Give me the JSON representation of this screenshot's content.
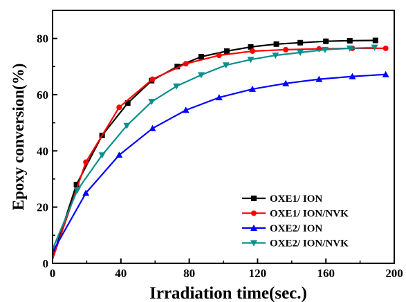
{
  "chart_data": {
    "type": "line",
    "xlabel": "Irradiation time(sec.)",
    "ylabel": "Epoxy conversion(%)",
    "xlim": [
      0,
      200
    ],
    "ylim": [
      0,
      90
    ],
    "xticks": [
      "0",
      "40",
      "80",
      "120",
      "160",
      "200"
    ],
    "yticks": [
      "0",
      "20",
      "40",
      "60",
      "80"
    ],
    "grid": false,
    "legend_position": "bottom-right",
    "series": [
      {
        "name": "OXE1/ ION",
        "color": "#000000",
        "marker": "square",
        "x": [
          0,
          14,
          29,
          44,
          58,
          73,
          87,
          102,
          116,
          131,
          145,
          160,
          174,
          189
        ],
        "y": [
          2,
          28,
          45.5,
          57,
          65,
          70,
          73.5,
          75.5,
          77,
          78,
          78.5,
          79,
          79.2,
          79.3
        ]
      },
      {
        "name": "OXE1/ ION/NVK",
        "color": "#ff0000",
        "marker": "circle",
        "x": [
          0,
          19.5,
          39,
          58.5,
          78,
          97.5,
          117,
          136.5,
          156,
          175.5,
          195
        ],
        "y": [
          1.5,
          36,
          55.5,
          65.5,
          71,
          74,
          75.5,
          76,
          76.3,
          76.5,
          76.5
        ]
      },
      {
        "name": "OXE2/ ION",
        "color": "#0000ff",
        "marker": "triangle-up",
        "x": [
          0,
          19.5,
          39,
          58.5,
          78,
          97.5,
          117,
          136.5,
          156,
          175.5,
          195
        ],
        "y": [
          4,
          25,
          38.5,
          48,
          54.5,
          59,
          62,
          64,
          65.5,
          66.5,
          67.2
        ]
      },
      {
        "name": "OXE2/ ION/NVK",
        "color": "#0a8f8f",
        "marker": "triangle-down",
        "x": [
          0,
          14.5,
          29,
          43.5,
          58,
          72.5,
          87,
          101.5,
          116,
          130.5,
          145,
          159.5,
          174,
          188.5
        ],
        "y": [
          5,
          26,
          38.5,
          49,
          57.5,
          63,
          67,
          70.5,
          72.5,
          74,
          75,
          76,
          76.5,
          76.8
        ]
      }
    ]
  }
}
